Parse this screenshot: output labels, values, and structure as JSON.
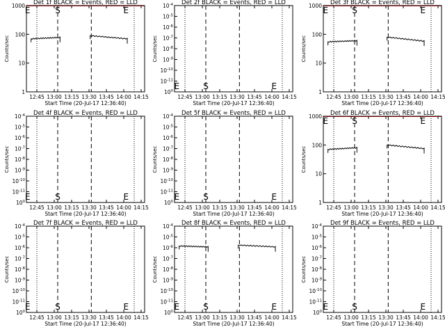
{
  "figure": {
    "colors": {
      "events": "#000000",
      "lld": "#ff0000",
      "background": "#ffffff"
    },
    "x_tick_labels": [
      "12:45",
      "13:00",
      "13:15",
      "13:30",
      "13:45",
      "14:00",
      "14:15"
    ],
    "x_label": "Start Time (20-Jul-17 12:36:40)",
    "y_label": "Counts/sec"
  },
  "chart_data": [
    {
      "type": "line",
      "title": "Det 1f BLACK = Events, RED = LLD",
      "scale": "linear",
      "ylim": [
        1,
        1000
      ],
      "ytick_labels": [
        "1000",
        "100",
        "10",
        "1"
      ],
      "markers": [
        {
          "label": "E",
          "x": "12:37"
        },
        {
          "label": "S",
          "x": "13:03"
        },
        {
          "label": "E",
          "x": "14:02"
        }
      ],
      "segments": [
        {
          "x": [
            "12:40",
            "13:05"
          ],
          "y": [
            70,
            78
          ],
          "series": "Events"
        },
        {
          "x": [
            "13:31",
            "14:03"
          ],
          "y": [
            90,
            70
          ],
          "series": "Events"
        }
      ]
    },
    {
      "type": "line",
      "title": "Det 2f BLACK = Events, RED = LLD",
      "scale": "linear",
      "ylim": [
        0,
        1
      ],
      "ytick_labels": [
        "10^-4",
        "10^-5",
        "10^-6",
        "10^-7",
        "10^-8",
        "10^-9",
        "10^-10",
        "10^-11",
        "10^0"
      ],
      "markers": [
        {
          "label": "E",
          "x": "12:38"
        },
        {
          "label": "S",
          "x": "13:03"
        },
        {
          "label": "E",
          "x": "14:02"
        }
      ],
      "segments": []
    },
    {
      "type": "line",
      "title": "Det 3f BLACK = Events, RED = LLD",
      "scale": "linear",
      "ylim": [
        1,
        1000
      ],
      "ytick_labels": [
        "1000",
        "100",
        "10",
        "1"
      ],
      "markers": [
        {
          "label": "E",
          "x": "12:38"
        },
        {
          "label": "S",
          "x": "13:03"
        },
        {
          "label": "E",
          "x": "14:02"
        }
      ],
      "segments": [
        {
          "x": [
            "12:40",
            "13:05"
          ],
          "y": [
            55,
            60
          ],
          "series": "Events"
        },
        {
          "x": [
            "13:31",
            "14:03"
          ],
          "y": [
            80,
            58
          ],
          "series": "Events"
        }
      ]
    },
    {
      "type": "line",
      "title": "Det 4f BLACK = Events, RED = LLD",
      "scale": "linear",
      "ylim": [
        0,
        1
      ],
      "ytick_labels": [
        "10^-4",
        "10^-5",
        "10^-6",
        "10^-7",
        "10^-8",
        "10^-9",
        "10^-10",
        "10^-11",
        "10^0"
      ],
      "markers": [
        {
          "label": "E",
          "x": "12:37"
        },
        {
          "label": "S",
          "x": "13:03"
        },
        {
          "label": "E",
          "x": "14:02"
        }
      ],
      "segments": []
    },
    {
      "type": "line",
      "title": "Det 5f BLACK = Events, RED = LLD",
      "scale": "linear",
      "ylim": [
        0,
        1
      ],
      "ytick_labels": [
        "10^-4",
        "10^-5",
        "10^-6",
        "10^-7",
        "10^-8",
        "10^-9",
        "10^-10",
        "10^-11",
        "10^0"
      ],
      "markers": [
        {
          "label": "E",
          "x": "12:38"
        },
        {
          "label": "S",
          "x": "13:03"
        },
        {
          "label": "E",
          "x": "14:02"
        }
      ],
      "segments": []
    },
    {
      "type": "line",
      "title": "Det 6f BLACK = Events, RED = LLD",
      "scale": "linear",
      "ylim": [
        1,
        1000
      ],
      "ytick_labels": [
        "1000",
        "100",
        "10",
        "1"
      ],
      "markers": [
        {
          "label": "E",
          "x": "12:38"
        },
        {
          "label": "S",
          "x": "13:03"
        },
        {
          "label": "E",
          "x": "14:02"
        }
      ],
      "segments": [
        {
          "x": [
            "12:40",
            "13:05"
          ],
          "y": [
            70,
            80
          ],
          "series": "Events"
        },
        {
          "x": [
            "13:31",
            "14:03"
          ],
          "y": [
            100,
            75
          ],
          "series": "Events"
        }
      ]
    },
    {
      "type": "line",
      "title": "Det 7f BLACK = Events, RED = LLD",
      "scale": "linear",
      "ylim": [
        0,
        1
      ],
      "ytick_labels": [
        "10^-4",
        "10^-5",
        "10^-6",
        "10^-7",
        "10^-8",
        "10^-9",
        "10^-10",
        "10^-11",
        "10^0"
      ],
      "markers": [
        {
          "label": "E",
          "x": "12:37"
        },
        {
          "label": "S",
          "x": "13:03"
        },
        {
          "label": "E",
          "x": "14:02"
        }
      ],
      "segments": []
    },
    {
      "type": "line",
      "title": "Det 8f BLACK = Events, RED = LLD",
      "scale": "linear",
      "ylim": [
        0,
        1
      ],
      "ytick_labels": [
        "10^-4",
        "10^-5",
        "10^-6",
        "10^-7",
        "10^-8",
        "10^-9",
        "10^-10",
        "10^-11",
        "10^0"
      ],
      "markers": [
        {
          "label": "E",
          "x": "12:38"
        },
        {
          "label": "S",
          "x": "13:03"
        },
        {
          "label": "E",
          "x": "14:02"
        }
      ],
      "segments": [
        {
          "x": [
            "12:40",
            "13:05"
          ],
          "y": [
            0.77,
            0.76
          ],
          "series": "Events"
        },
        {
          "x": [
            "13:31",
            "14:03"
          ],
          "y": [
            0.78,
            0.76
          ],
          "series": "Events"
        }
      ]
    },
    {
      "type": "line",
      "title": "Det 9f BLACK = Events, RED = LLD",
      "scale": "linear",
      "ylim": [
        0,
        1
      ],
      "ytick_labels": [
        "10^-4",
        "10^-5",
        "10^-6",
        "10^-7",
        "10^-8",
        "10^-9",
        "10^-10",
        "10^-11",
        "10^0"
      ],
      "markers": [
        {
          "label": "E",
          "x": "12:38"
        },
        {
          "label": "S",
          "x": "13:03"
        },
        {
          "label": "E",
          "x": "14:02"
        }
      ],
      "segments": []
    }
  ]
}
